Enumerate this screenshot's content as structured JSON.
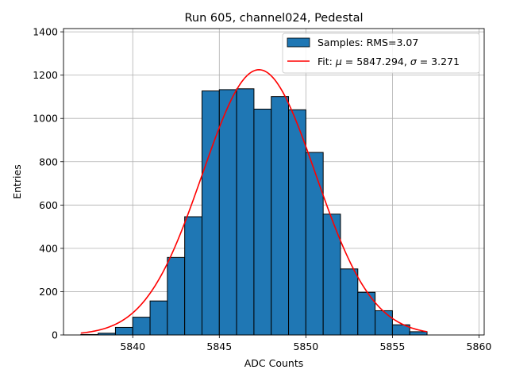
{
  "chart_data": {
    "type": "bar",
    "title": "Run 605, channel024, Pedestal",
    "xlabel": "ADC Counts",
    "ylabel": "Entries",
    "xlim": [
      5836.0,
      5860.3
    ],
    "ylim": [
      0,
      1415
    ],
    "xticks": [
      5840,
      5845,
      5850,
      5855,
      5860
    ],
    "yticks": [
      0,
      200,
      400,
      600,
      800,
      1000,
      1200,
      1400
    ],
    "grid": true,
    "legend_position": "top-right",
    "bin_width": 1.0,
    "bins": {
      "x": [
        5837,
        5838,
        5839,
        5840,
        5841,
        5842,
        5843,
        5844,
        5845,
        5846,
        5847,
        5848,
        5849,
        5850,
        5851,
        5852,
        5853,
        5854,
        5855,
        5856
      ],
      "values": [
        2,
        8,
        35,
        82,
        157,
        358,
        546,
        1127,
        1133,
        1137,
        1043,
        1101,
        1040,
        843,
        558,
        305,
        197,
        112,
        47,
        15
      ]
    },
    "fit": {
      "mu": 5847.294,
      "sigma": 3.271,
      "peak": 1225,
      "x_range": [
        5837.0,
        5857.0
      ]
    },
    "series": [
      {
        "name": "Samples: RMS=3.07",
        "kind": "histogram",
        "color": "#1f77b4",
        "edge_color": "#000000"
      },
      {
        "name_prefix": "Fit: ",
        "name_mu": "μ",
        "name_mid": " = 5847.294, ",
        "name_sigma": "σ",
        "name_suffix": " = 3.271",
        "kind": "line",
        "color": "#ff0000"
      }
    ]
  }
}
